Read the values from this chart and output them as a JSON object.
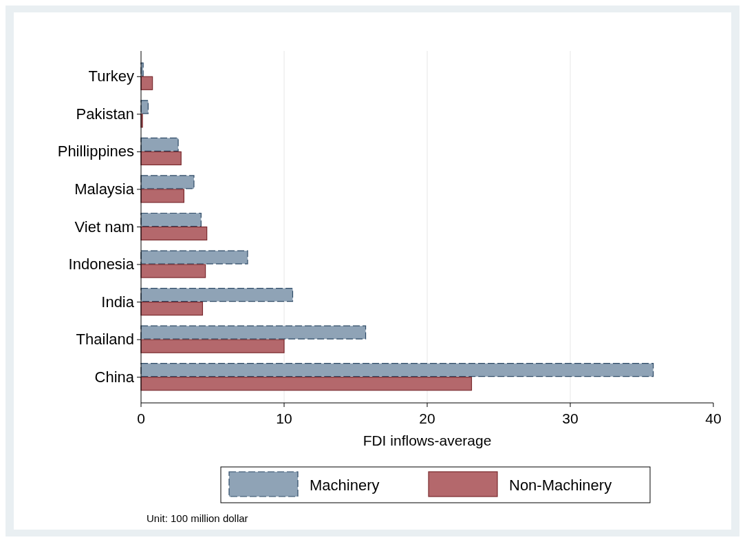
{
  "chart_data": {
    "type": "bar",
    "orientation": "horizontal",
    "xlabel": "FDI inflows-average",
    "categories": [
      "Turkey",
      "Pakistan",
      "Phillippines",
      "Malaysia",
      "Viet nam",
      "Indonesia",
      "India",
      "Thailand",
      "China"
    ],
    "series": [
      {
        "name": "Machinery",
        "color": "#8fa3b6",
        "values": [
          0.15,
          0.5,
          2.6,
          3.7,
          4.2,
          7.45,
          10.6,
          15.7,
          35.8
        ]
      },
      {
        "name": "Non-Machinery",
        "color": "#b4686c",
        "values": [
          0.8,
          0.1,
          2.8,
          3.0,
          4.6,
          4.5,
          4.3,
          10.0,
          23.1
        ]
      }
    ],
    "xlim": [
      0,
      40
    ],
    "xticks": [
      0,
      10,
      20,
      30,
      40
    ],
    "grid": "x",
    "legend": "bottom",
    "annotations": [
      "Unit: 100 million dollar"
    ]
  }
}
